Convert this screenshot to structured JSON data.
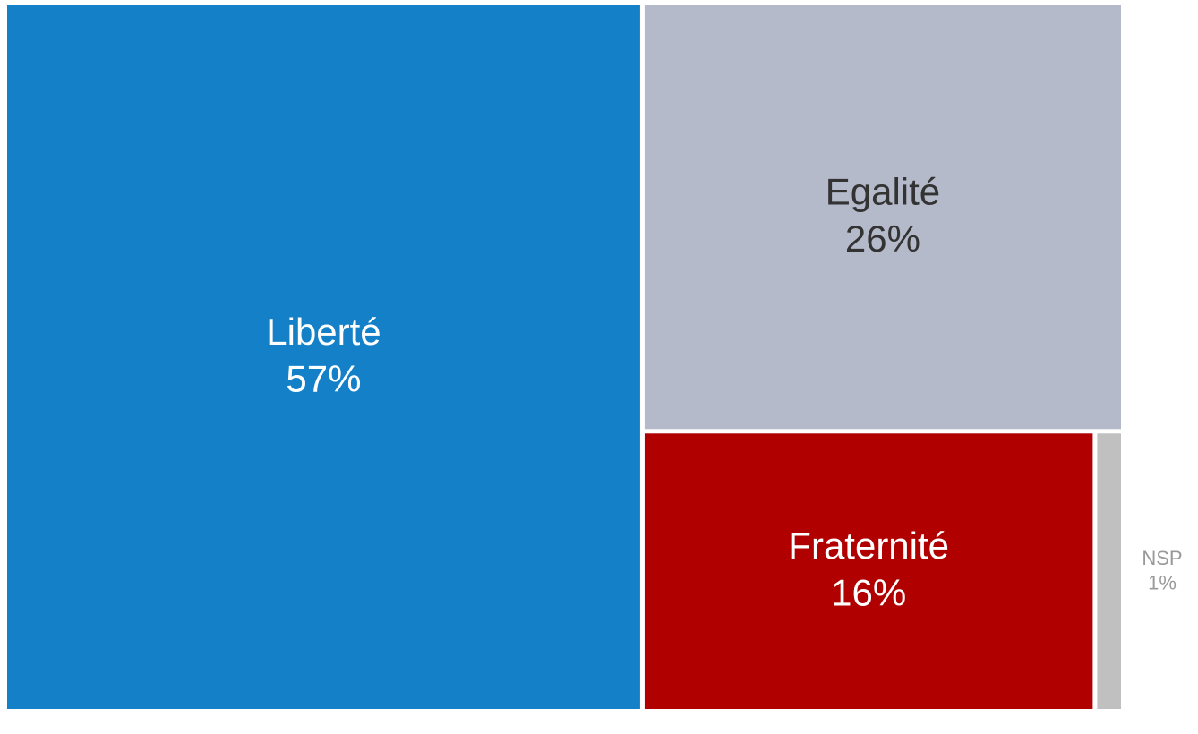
{
  "chart_data": {
    "type": "treemap",
    "categories": [
      "Liberté",
      "Egalité",
      "Fraternité",
      "NSP"
    ],
    "values": [
      57,
      26,
      16,
      1
    ],
    "value_labels": [
      "57%",
      "26%",
      "16%",
      "1%"
    ],
    "colors": [
      "#1380c8",
      "#b4bac9",
      "#b00000",
      "#c0c0c0"
    ]
  }
}
